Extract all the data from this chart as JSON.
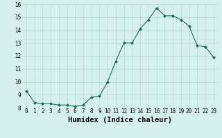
{
  "x": [
    0,
    1,
    2,
    3,
    4,
    5,
    6,
    7,
    8,
    9,
    10,
    11,
    12,
    13,
    14,
    15,
    16,
    17,
    18,
    19,
    20,
    21,
    22,
    23
  ],
  "y": [
    9.3,
    8.4,
    8.3,
    8.3,
    8.2,
    8.2,
    8.1,
    8.2,
    8.8,
    8.9,
    10.0,
    11.6,
    13.0,
    13.0,
    14.1,
    14.8,
    15.7,
    15.1,
    15.1,
    14.8,
    14.3,
    12.8,
    12.7,
    11.9
  ],
  "xlabel": "Humidex (Indice chaleur)",
  "ylim": [
    8,
    16
  ],
  "xlim": [
    -0.5,
    23.5
  ],
  "yticks": [
    8,
    9,
    10,
    11,
    12,
    13,
    14,
    15,
    16
  ],
  "xticks": [
    0,
    1,
    2,
    3,
    4,
    5,
    6,
    7,
    8,
    9,
    10,
    11,
    12,
    13,
    14,
    15,
    16,
    17,
    18,
    19,
    20,
    21,
    22,
    23
  ],
  "xtick_labels": [
    "0",
    "1",
    "2",
    "3",
    "4",
    "5",
    "6",
    "7",
    "8",
    "9",
    "10",
    "11",
    "12",
    "13",
    "14",
    "15",
    "16",
    "17",
    "18",
    "19",
    "20",
    "21",
    "22",
    "23"
  ],
  "line_color": "#1a6b5a",
  "marker": "D",
  "marker_size": 2.0,
  "line_width": 0.8,
  "bg_color": "#d6f0ee",
  "grid_color": "#b8ddd9",
  "tick_label_fontsize": 5.5,
  "xlabel_fontsize": 7.5,
  "xlabel_fontweight": "bold"
}
